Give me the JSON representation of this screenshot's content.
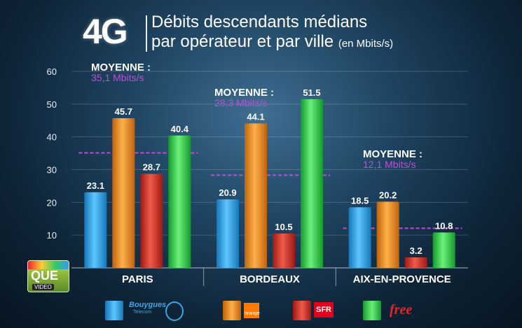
{
  "title": {
    "big": "4G",
    "line1": "Débits descendants médians",
    "line2": "par opérateur et par ville",
    "unit": "(en Mbits/s)"
  },
  "chart_data": {
    "type": "bar",
    "categories": [
      "PARIS",
      "BORDEAUX",
      "AIX-EN-PROVENCE"
    ],
    "series": [
      {
        "name": "Bouygues Telecom",
        "values": [
          23.1,
          20.9,
          18.5
        ]
      },
      {
        "name": "orange",
        "values": [
          45.7,
          44.1,
          20.2
        ]
      },
      {
        "name": "SFR",
        "values": [
          28.7,
          10.5,
          3.2
        ]
      },
      {
        "name": "free",
        "values": [
          40.4,
          51.5,
          10.8
        ]
      }
    ],
    "data_labels": [
      [
        "23.1",
        "45.7",
        "28.7",
        "40.4"
      ],
      [
        "20.9",
        "44.1",
        "10.5",
        "51.5"
      ],
      [
        "18.5",
        "20.2",
        "3.2",
        "10.8"
      ]
    ],
    "averages": [
      {
        "label": "MOYENNE :",
        "value_text": "35,1 Mbits/s",
        "value": 35.1
      },
      {
        "label": "MOYENNE :",
        "value_text": "28,3 Mbits/s",
        "value": 28.3
      },
      {
        "label": "MOYENNE :",
        "value_text": "12,1 Mbits/s",
        "value": 12.1
      }
    ],
    "yticks": [
      10,
      20,
      30,
      40,
      50,
      60
    ],
    "ylim": [
      0,
      60
    ],
    "grid": true,
    "legend_position": "bottom"
  },
  "colors": {
    "series": [
      "#2fa6e6",
      "#f08a1c",
      "#d9342a",
      "#2ed14a"
    ],
    "average_line": "#c24ad8"
  },
  "logo": {
    "text": "QUE",
    "sub": "VIDEO"
  },
  "legend": {
    "bouygues": "Bouygues",
    "bouygues_sub": "Telecom",
    "orange": "orange",
    "sfr": "SFR",
    "free": "free"
  }
}
